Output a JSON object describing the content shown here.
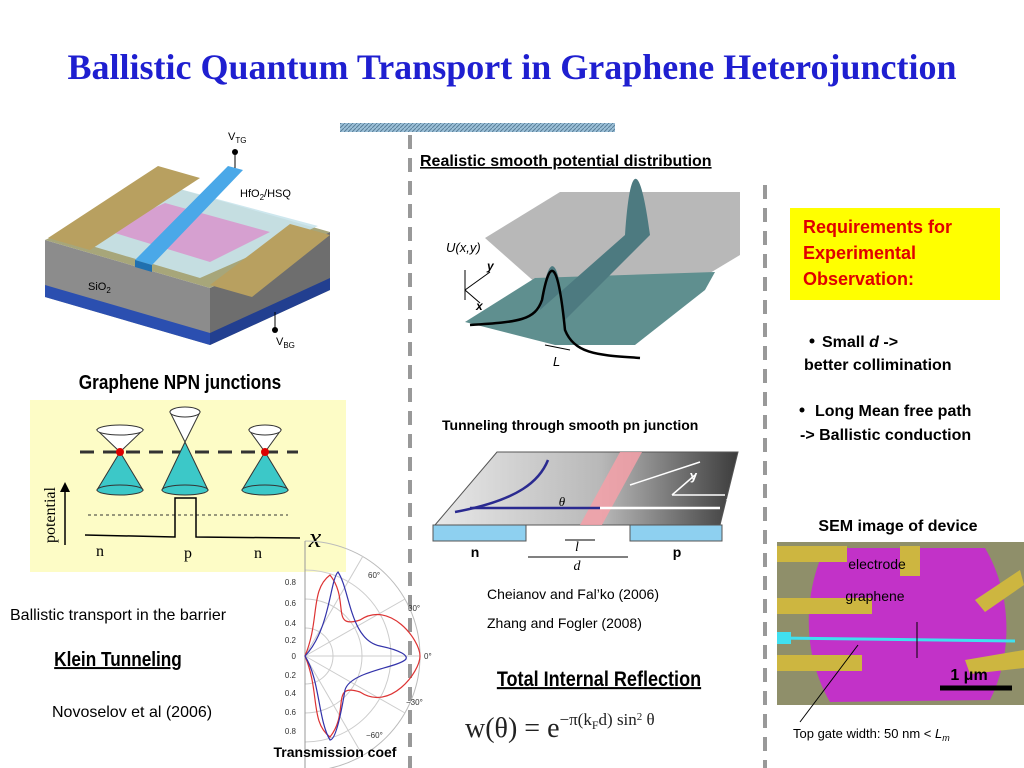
{
  "title": "Ballistic Quantum Transport in Graphene Heterojunction",
  "device": {
    "top_gate": {
      "main": "V",
      "sub": "TG"
    },
    "dielectric": {
      "main": "HfO",
      "sub": "2",
      "rest": "/HSQ"
    },
    "substrate": {
      "main": "SiO",
      "sub": "2"
    },
    "back_gate": {
      "main": "V",
      "sub": "BG"
    },
    "caption": "Graphene NPN junctions"
  },
  "npn": {
    "axis_label": "potential",
    "regions": [
      "n",
      "p",
      "n"
    ],
    "x_label": "x"
  },
  "klein": {
    "note": "Ballistic transport in the barrier",
    "heading": "Klein Tunneling",
    "citation": "Novoselov et al (2006)"
  },
  "polar": {
    "radial_labels": [
      "0.8",
      "0.6",
      "0.4",
      "0.2",
      "0",
      "0.2",
      "0.4",
      "0.6",
      "0.8"
    ],
    "angle_labels": [
      "60°",
      "30°",
      "0°",
      "−30°",
      "−60°"
    ],
    "caption": "Transmission coef"
  },
  "potential": {
    "heading": "Realistic smooth potential distribution",
    "z_label": "U(x,y)",
    "y_label": "y",
    "x_label": "x",
    "width_label": "L"
  },
  "junction": {
    "heading": "Tunneling through smooth pn junction",
    "n": "n",
    "p": "p",
    "l": "l",
    "d": "d",
    "angle": "θ",
    "y": "y",
    "x": "x",
    "citations": [
      "Cheianov and Fal’ko (2006)",
      "Zhang and Fogler (2008)"
    ]
  },
  "reflection": {
    "heading": "Total Internal Reflection",
    "formula": {
      "lhs": "w(θ) = e",
      "exp1": "−π(k",
      "sub": "F",
      "exp2": "d) sin",
      "sup": "2",
      "exp3": " θ"
    }
  },
  "requirements": {
    "heading_lines": [
      "Requirements for",
      "Experimental",
      "Observation:"
    ],
    "bullet1": {
      "pre": "Small ",
      "var": "d",
      "post": " ->",
      "line2": "better collimination"
    },
    "bullet2": {
      "line1": "Long Mean free path",
      "line2": "-> Ballistic conduction"
    }
  },
  "sem": {
    "heading": "SEM image of device",
    "electrode": "electrode",
    "graphene": "graphene",
    "scale": "1 μm",
    "note": {
      "text": "Top gate width: 50 nm < ",
      "var": "L",
      "sub": "m"
    }
  }
}
